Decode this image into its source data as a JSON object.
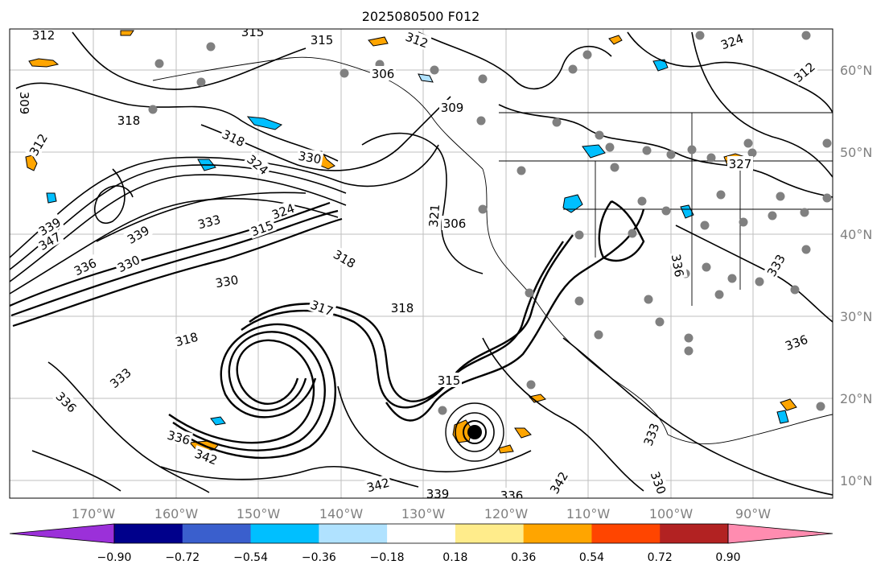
{
  "title": "2025080500 F012",
  "map": {
    "lon_labels": [
      "170°W",
      "160°W",
      "150°W",
      "140°W",
      "130°W",
      "120°W",
      "110°W",
      "100°W",
      "90°W"
    ],
    "lat_labels": [
      "60°N",
      "50°N",
      "40°N",
      "30°N",
      "20°N",
      "10°N"
    ],
    "contour_labels": [
      "312",
      "315",
      "315",
      "312",
      "324",
      "312",
      "306",
      "309",
      "309",
      "318",
      "318",
      "324",
      "312",
      "321",
      "330",
      "306",
      "339",
      "347",
      "333",
      "339",
      "315",
      "324",
      "336",
      "330",
      "318",
      "327",
      "330",
      "317",
      "318",
      "318",
      "315",
      "336",
      "336",
      "342",
      "342",
      "339",
      "336",
      "342",
      "330",
      "333",
      "336",
      "333",
      "336",
      "333"
    ],
    "contour_color": "#000000",
    "land_outline_color": "#000000",
    "grid_color": "#bfbfbf",
    "marker_color": "#808080"
  },
  "colorbar": {
    "tick_labels": [
      "−0.90",
      "−0.72",
      "−0.54",
      "−0.36",
      "−0.18",
      "0.18",
      "0.36",
      "0.54",
      "0.72",
      "0.90"
    ],
    "colors": [
      "#9b30d9",
      "#00008b",
      "#3a5fcd",
      "#00bfff",
      "#b0e2ff",
      "#ffffff",
      "#ffec8b",
      "#ffa500",
      "#ff4500",
      "#b22222",
      "#ff8cb0"
    ]
  }
}
